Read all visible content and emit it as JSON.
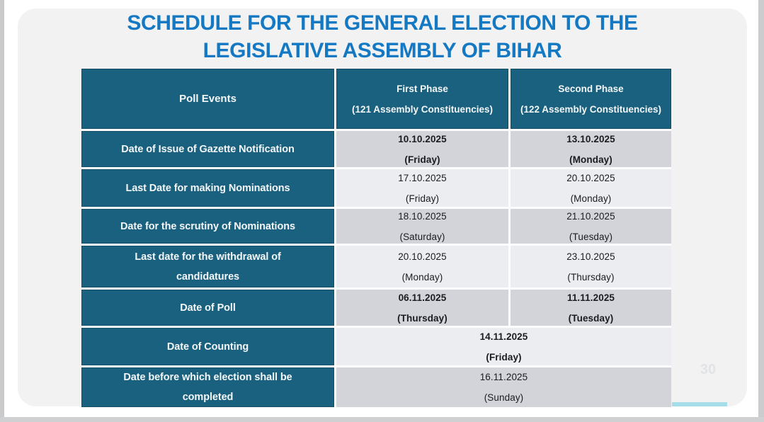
{
  "slide": {
    "title_line1": "SCHEDULE FOR THE GENERAL ELECTION TO THE",
    "title_line2": "LEGISLATIVE ASSEMBLY OF BIHAR",
    "page_number": "30"
  },
  "colors": {
    "title_blue": "#1478c2",
    "header_teal": "#1a607f",
    "row_gray_dark": "#d2d4da",
    "row_gray_light": "#ebedf0",
    "accent_cyan": "#a5dee9",
    "slide_background": "#f2f2f3"
  },
  "table": {
    "header": {
      "poll_events": "Poll Events",
      "first_phase_title": "First Phase",
      "first_phase_sub": "(121 Assembly Constituencies)",
      "second_phase_title": "Second Phase",
      "second_phase_sub": "(122 Assembly Constituencies)"
    },
    "rows": [
      {
        "event": "Date of Issue of Gazette Notification",
        "p1_date": "10.10.2025",
        "p1_day": "(Friday)",
        "p2_date": "13.10.2025",
        "p2_day": "(Monday)"
      },
      {
        "event": "Last Date for making Nominations",
        "p1_date": "17.10.2025",
        "p1_day": "(Friday)",
        "p2_date": "20.10.2025",
        "p2_day": "(Monday)"
      },
      {
        "event": "Date for the scrutiny of Nominations",
        "p1_date": "18.10.2025",
        "p1_day": "(Saturday)",
        "p2_date": "21.10.2025",
        "p2_day": "(Tuesday)"
      },
      {
        "event": "Last date for the withdrawal of candidatures",
        "p1_date": "20.10.2025",
        "p1_day": "(Monday)",
        "p2_date": "23.10.2025",
        "p2_day": "(Thursday)"
      },
      {
        "event": "Date of Poll",
        "p1_date": "06.11.2025",
        "p1_day": "(Thursday)",
        "p2_date": "11.11.2025",
        "p2_day": "(Tuesday)"
      },
      {
        "event": "Date of Counting",
        "date": "14.11.2025",
        "day": "(Friday)"
      },
      {
        "event": "Date before which election shall be completed",
        "date": "16.11.2025",
        "day": "(Sunday)"
      }
    ]
  }
}
